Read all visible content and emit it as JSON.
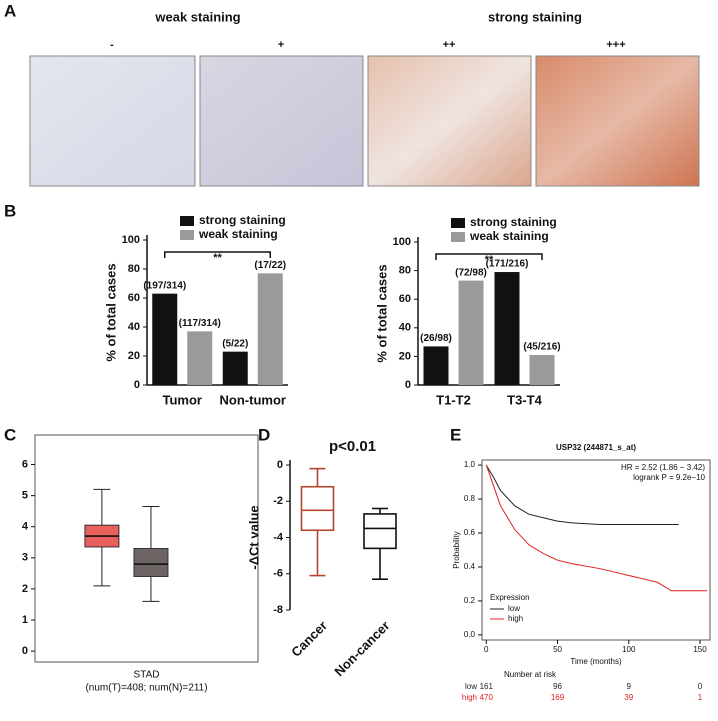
{
  "panel_labels": [
    "A",
    "B",
    "C",
    "D",
    "E"
  ],
  "panel_a": {
    "groups": [
      "weak staining",
      "strong staining"
    ],
    "grades": [
      "-",
      "+",
      "++",
      "+++"
    ]
  },
  "chart_data": [
    {
      "type": "bar",
      "ylabel": "% of total cases",
      "annotation": "**",
      "categories": [
        "Tumor",
        "Non-tumor"
      ],
      "series": [
        {
          "name": "strong staining",
          "color": "#111111",
          "values": [
            63,
            23
          ],
          "value_labels": [
            "(197/314)",
            "(5/22)"
          ]
        },
        {
          "name": "weak staining",
          "color": "#9a9a9a",
          "values": [
            37,
            77
          ],
          "value_labels": [
            "(117/314)",
            "(17/22)"
          ]
        }
      ],
      "ylim": [
        0,
        100
      ],
      "yticks": [
        0,
        20,
        40,
        60,
        80,
        100
      ]
    },
    {
      "type": "bar",
      "ylabel": "% of total cases",
      "annotation": "**",
      "categories": [
        "T1-T2",
        "T3-T4"
      ],
      "series": [
        {
          "name": "strong staining",
          "color": "#111111",
          "values": [
            27,
            79
          ],
          "value_labels": [
            "(26/98)",
            "(171/216)"
          ]
        },
        {
          "name": "weak staining",
          "color": "#9a9a9a",
          "values": [
            73,
            21
          ],
          "value_labels": [
            "(72/98)",
            "(45/216)"
          ]
        }
      ],
      "ylim": [
        0,
        100
      ],
      "yticks": [
        0,
        20,
        40,
        60,
        80,
        100
      ]
    },
    {
      "type": "box",
      "title": "STAD",
      "subtitle": "(num(T)=408; num(N)=211)",
      "filled": true,
      "boxes": [
        {
          "color": "#e8605c",
          "min": 2.1,
          "q1": 3.35,
          "median": 3.7,
          "q3": 4.05,
          "max": 5.2
        },
        {
          "color": "#6d6464",
          "min": 1.6,
          "q1": 2.4,
          "median": 2.8,
          "q3": 3.3,
          "max": 4.65
        }
      ],
      "ylim": [
        -0.35,
        6.95
      ],
      "yticks": [
        0,
        1,
        2,
        3,
        4,
        5,
        6
      ]
    },
    {
      "type": "box",
      "title": "p<0.01",
      "ylabel": "-ΔCt value",
      "filled": false,
      "categories": [
        "Cancer",
        "Non-cancer"
      ],
      "boxes": [
        {
          "color": "#b5472f",
          "min": -6.1,
          "q1": -3.6,
          "median": -2.5,
          "q3": -1.2,
          "max": -0.2
        },
        {
          "color": "#111111",
          "min": -6.3,
          "q1": -4.6,
          "median": -3.5,
          "q3": -2.7,
          "max": -2.4
        }
      ],
      "ylim": [
        -8,
        0
      ],
      "yticks": [
        -8,
        -6,
        -4,
        -2,
        0
      ]
    },
    {
      "type": "line",
      "title": "USP32 (244871_s_at)",
      "annotations": [
        "HR = 2.52 (1.86 − 3.42)",
        "logrank P = 9.2e−10"
      ],
      "xlabel": "Time (months)",
      "ylabel": "Probability",
      "legend_title": "Expression",
      "legend": "lower left",
      "series": [
        {
          "name": "low",
          "color": "#222222",
          "x": [
            0,
            5,
            10,
            20,
            30,
            40,
            50,
            60,
            80,
            100,
            120,
            135
          ],
          "values": [
            1,
            0.93,
            0.85,
            0.76,
            0.71,
            0.69,
            0.67,
            0.66,
            0.65,
            0.65,
            0.65,
            0.65
          ],
          "at_risk": [
            161,
            96,
            9,
            0
          ]
        },
        {
          "name": "high",
          "color": "#e02020",
          "x": [
            0,
            5,
            10,
            20,
            30,
            40,
            50,
            60,
            80,
            100,
            120,
            130,
            140,
            155
          ],
          "values": [
            1,
            0.88,
            0.76,
            0.62,
            0.53,
            0.48,
            0.44,
            0.42,
            0.39,
            0.35,
            0.31,
            0.26,
            0.26,
            0.26
          ],
          "at_risk": [
            470,
            169,
            39,
            1
          ]
        }
      ],
      "risk_title": "Number at risk",
      "xlim": [
        -3,
        157
      ],
      "xticks": [
        0,
        50,
        100,
        150
      ],
      "ylim": [
        -0.03,
        1.03
      ],
      "yticks": [
        {
          "value": 0,
          "label": "0.0"
        },
        0.2,
        0.4,
        0.6,
        0.8,
        {
          "value": 1,
          "label": "1.0"
        }
      ]
    }
  ]
}
